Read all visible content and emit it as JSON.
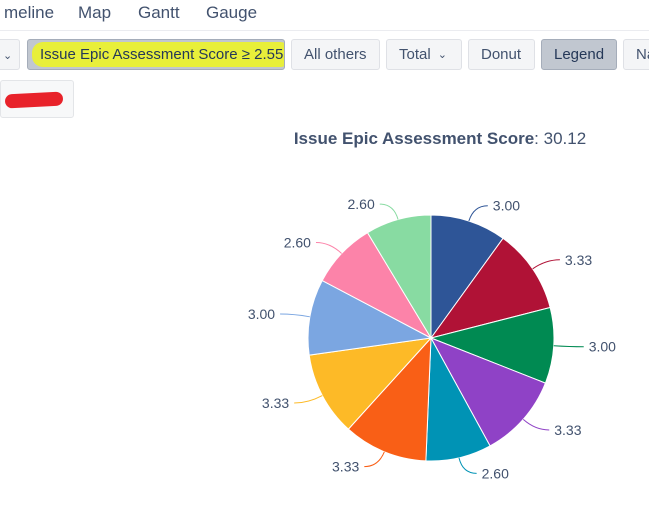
{
  "tabs": [
    "meline",
    "Map",
    "Gantt",
    "Gauge"
  ],
  "toolbar": {
    "filter_label": "Issue Epic Assessment Score ≥ 2.55",
    "others_label": "All others",
    "total_label": "Total",
    "donut_label": "Donut",
    "legend_label": "Legend",
    "cut_label": "Na"
  },
  "chart_data": {
    "type": "pie",
    "title": "Issue Epic Assessment Score",
    "total": "30.12",
    "slices": [
      {
        "value": 3.0,
        "label": "3.00",
        "color": "#2e5597"
      },
      {
        "value": 3.33,
        "label": "3.33",
        "color": "#b01236"
      },
      {
        "value": 3.0,
        "label": "3.00",
        "color": "#008a52"
      },
      {
        "value": 3.33,
        "label": "3.33",
        "color": "#8f42c6"
      },
      {
        "value": 2.6,
        "label": "2.60",
        "color": "#0093b5"
      },
      {
        "value": 3.33,
        "label": "3.33",
        "color": "#f95f16"
      },
      {
        "value": 3.33,
        "label": "3.33",
        "color": "#fdba27"
      },
      {
        "value": 3.0,
        "label": "3.00",
        "color": "#7ba6e1"
      },
      {
        "value": 2.6,
        "label": "2.60",
        "color": "#fc83a9"
      },
      {
        "value": 2.6,
        "label": "2.60",
        "color": "#88dba2"
      }
    ]
  }
}
